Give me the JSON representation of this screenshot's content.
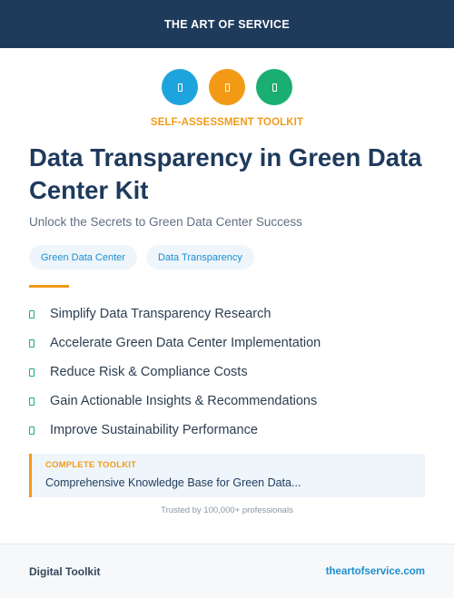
{
  "header": {
    "brand": "THE ART OF SERVICE"
  },
  "icons": [
    {
      "name": "blue-square-icon",
      "color": "#1ea4dd"
    },
    {
      "name": "orange-square-icon",
      "color": "#f29a16"
    },
    {
      "name": "green-square-icon",
      "color": "#1aae72"
    }
  ],
  "kicker": "SELF-ASSESSMENT TOOLKIT",
  "title": "Data Transparency in Green Data Center Kit",
  "subtitle": "Unlock the Secrets to Green Data Center Success",
  "tags": [
    "Green Data Center",
    "Data Transparency"
  ],
  "features": [
    "Simplify Data Transparency Research",
    "Accelerate Green Data Center Implementation",
    "Reduce Risk & Compliance Costs",
    "Gain Actionable Insights & Recommendations",
    "Improve Sustainability Performance"
  ],
  "toolkit": {
    "label": "COMPLETE TOOLKIT",
    "text": "Comprehensive Knowledge Base for Green Data..."
  },
  "trusted": "Trusted by 100,000+ professionals",
  "footer": {
    "left": "Digital Toolkit",
    "right": "theartofservice.com"
  },
  "colors": {
    "navy": "#1f3b5c",
    "accent_orange": "#f29a16",
    "accent_blue": "#1b8fd0",
    "accent_green": "#1aae72"
  }
}
